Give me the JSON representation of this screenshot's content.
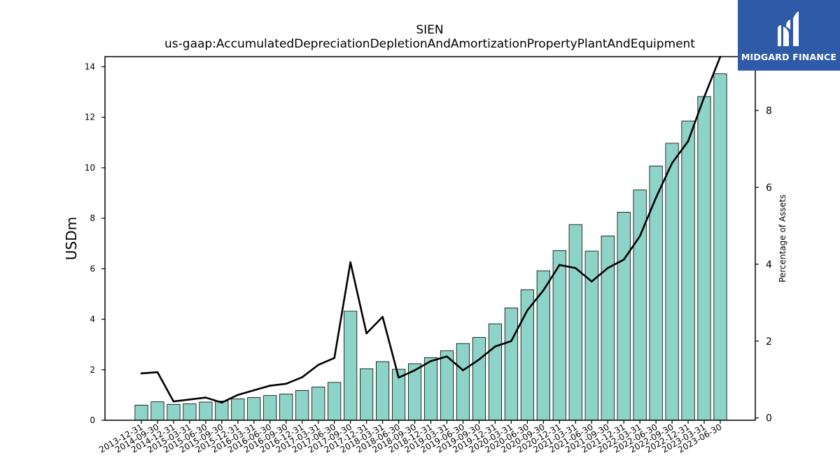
{
  "chart_data": {
    "type": "bar",
    "title": "SIEN",
    "subtitle": "us-gaap:AccumulatedDepreciationDepletionAndAmortizationPropertyPlantAndEquipment",
    "ylabel": "USDm",
    "ylabel_right": "Percentage of Assets",
    "ylim": [
      0,
      14.4
    ],
    "ylim_right": [
      -0.06,
      9.4
    ],
    "yticks": [
      "0",
      "2",
      "4",
      "6",
      "8",
      "10",
      "12",
      "14"
    ],
    "yticks_right": [
      "0",
      "2",
      "4",
      "6",
      "8"
    ],
    "bar_color": "#8dd3c7",
    "line_color": "#000000",
    "categories": [
      "2013-12-31",
      "2014-09-30",
      "2014-12-31",
      "2015-03-31",
      "2015-06-30",
      "2015-09-30",
      "2015-12-31",
      "2016-03-31",
      "2016-06-30",
      "2016-09-30",
      "2016-12-31",
      "2017-03-31",
      "2017-06-30",
      "2017-09-30",
      "2017-12-31",
      "2018-03-31",
      "2018-06-30",
      "2018-09-30",
      "2018-12-31",
      "2019-03-31",
      "2019-06-30",
      "2019-09-30",
      "2019-12-31",
      "2020-03-31",
      "2020-06-30",
      "2020-09-30",
      "2020-12-31",
      "2021-03-31",
      "2021-06-30",
      "2021-09-30",
      "2021-12-31",
      "2022-03-31",
      "2022-06-30",
      "2022-09-30",
      "2022-12-31",
      "2023-03-31",
      "2023-06-30"
    ],
    "series": [
      {
        "axis": "left",
        "type": "bar",
        "values": [
          0.6,
          0.73,
          0.63,
          0.65,
          0.72,
          0.76,
          0.85,
          0.9,
          0.98,
          1.04,
          1.18,
          1.32,
          1.5,
          4.32,
          2.04,
          2.32,
          2.02,
          2.24,
          2.48,
          2.75,
          3.04,
          3.28,
          3.82,
          4.45,
          5.17,
          5.92,
          6.72,
          7.75,
          6.7,
          7.3,
          8.24,
          9.12,
          10.07,
          10.97,
          11.85,
          12.82,
          13.72
        ]
      },
      {
        "axis": "right",
        "type": "line",
        "values": [
          1.16,
          1.19,
          0.43,
          0.48,
          0.53,
          0.4,
          0.6,
          0.72,
          0.84,
          0.89,
          1.06,
          1.38,
          1.56,
          4.05,
          2.2,
          2.63,
          1.05,
          1.24,
          1.48,
          1.6,
          1.24,
          1.52,
          1.86,
          2.0,
          2.8,
          3.32,
          3.98,
          3.9,
          3.55,
          3.9,
          4.12,
          4.73,
          5.73,
          6.63,
          7.2,
          8.35,
          9.4
        ]
      }
    ]
  },
  "logo": {
    "text": "MIDGARD FINANCE",
    "icon": "midgard-finance-logo-icon",
    "background": "#2e5aa8"
  }
}
